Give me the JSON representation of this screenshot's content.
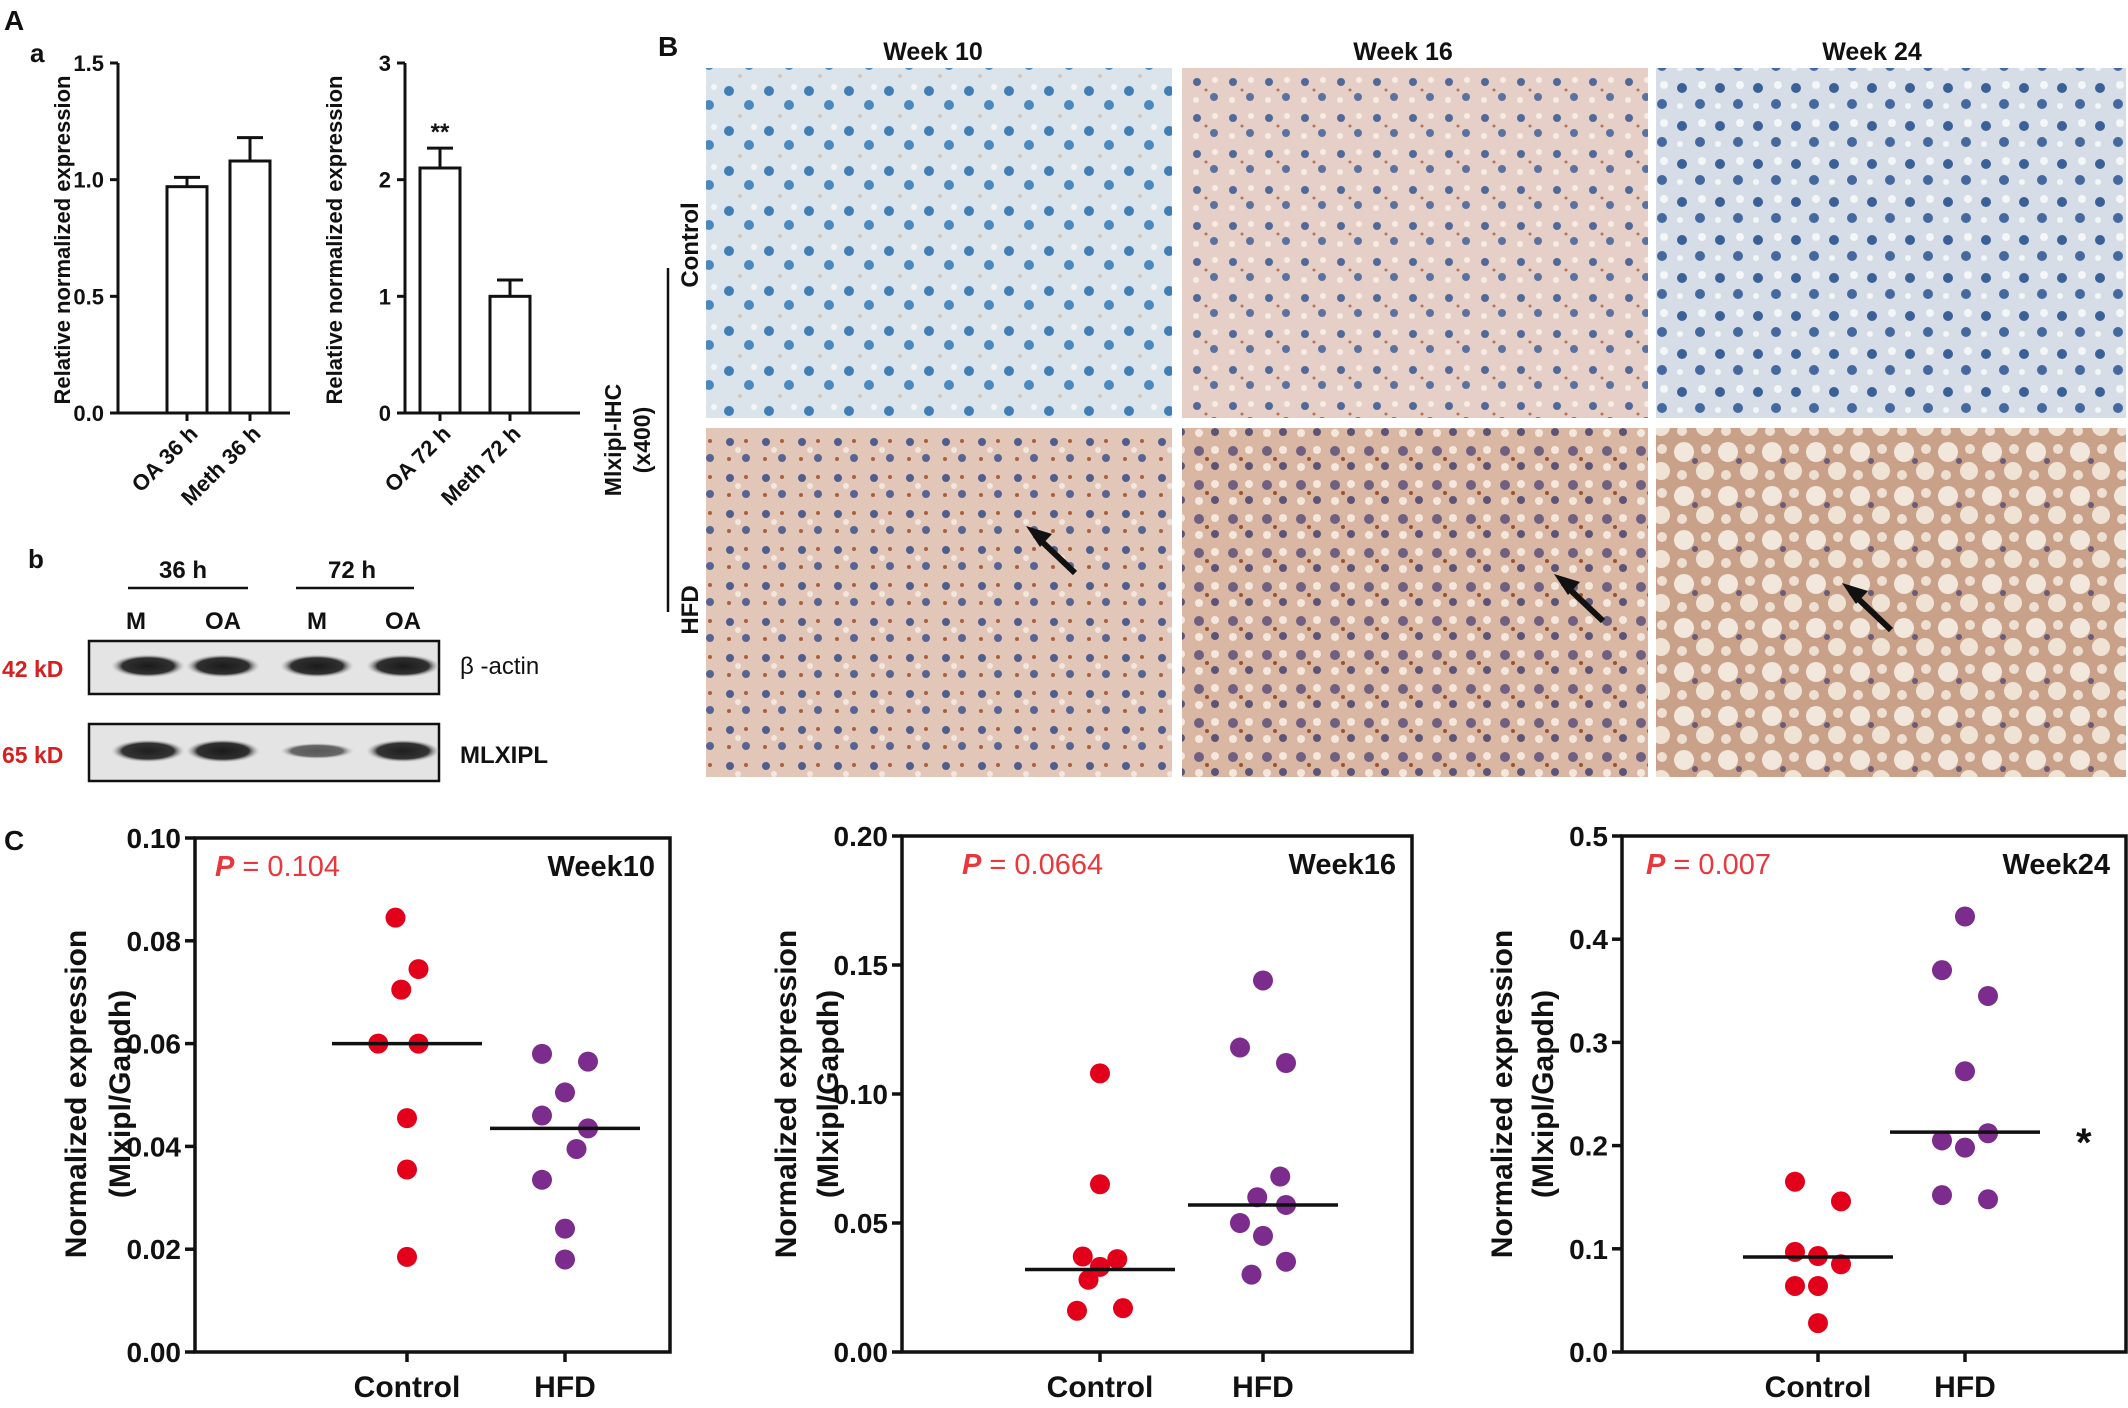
{
  "panels": {
    "A": "A",
    "a": "a",
    "b": "b",
    "B": "B",
    "C": "C"
  },
  "colors": {
    "control_dot": "#e3001b",
    "hfd_dot": "#7b2c8c",
    "p_value": "#e8383d",
    "kd_label": "#d42020"
  },
  "chart_data": [
    {
      "type": "bar",
      "panel": "A-a-left",
      "categories": [
        "OA 36 h",
        "Meth 36 h"
      ],
      "values": [
        0.97,
        1.08
      ],
      "errors": [
        0.04,
        0.1
      ],
      "ylabel": "Relative normalized expression",
      "ylim": [
        0,
        1.5
      ],
      "yticks": [
        "0.0",
        "0.5",
        "1.0",
        "1.5"
      ],
      "annotations": []
    },
    {
      "type": "bar",
      "panel": "A-a-right",
      "categories": [
        "OA 72 h",
        "Meth 72 h"
      ],
      "values": [
        2.1,
        1.0
      ],
      "errors": [
        0.17,
        0.14
      ],
      "ylabel": "Relative normalized expression",
      "ylim": [
        0,
        3
      ],
      "yticks": [
        "0",
        "1",
        "2",
        "3"
      ],
      "annotations": [
        "**",
        ""
      ]
    },
    {
      "type": "scatter",
      "panel": "C-week10",
      "label": "Week10",
      "p_text": "P",
      "p_value": "= 0.104",
      "categories": [
        "Control",
        "HFD"
      ],
      "ylabel": "Normalized expression",
      "ylabel2": "(Mlxipl/Gapdh)",
      "ylim": [
        0,
        0.1
      ],
      "yticks": [
        "0.00",
        "0.02",
        "0.04",
        "0.06",
        "0.08",
        "0.10"
      ],
      "series": [
        {
          "group": "Control",
          "median": 0.06,
          "points": [
            [
              -0.01,
              0.0845
            ],
            [
              0.01,
              0.0745
            ],
            [
              -0.005,
              0.0705
            ],
            [
              -0.025,
              0.06
            ],
            [
              0.01,
              0.06
            ],
            [
              0.0,
              0.0455
            ],
            [
              0.0,
              0.0355
            ],
            [
              0.0,
              0.0185
            ]
          ]
        },
        {
          "group": "HFD",
          "median": 0.0435,
          "points": [
            [
              -0.02,
              0.058
            ],
            [
              0.02,
              0.0565
            ],
            [
              0.0,
              0.0505
            ],
            [
              -0.02,
              0.046
            ],
            [
              0.02,
              0.0435
            ],
            [
              0.01,
              0.0395
            ],
            [
              -0.02,
              0.0335
            ],
            [
              0.0,
              0.024
            ],
            [
              0.0,
              0.018
            ]
          ]
        }
      ],
      "star": ""
    },
    {
      "type": "scatter",
      "panel": "C-week16",
      "label": "Week16",
      "p_text": "P",
      "p_value": "= 0.0664",
      "categories": [
        "Control",
        "HFD"
      ],
      "ylabel": "Normalized expression",
      "ylabel2": "(Mlxipl/Gapdh)",
      "ylim": [
        0,
        0.2
      ],
      "yticks": [
        "0.00",
        "0.05",
        "0.10",
        "0.15",
        "0.20"
      ],
      "series": [
        {
          "group": "Control",
          "median": 0.032,
          "points": [
            [
              0.0,
              0.108
            ],
            [
              0.0,
              0.065
            ],
            [
              -0.015,
              0.037
            ],
            [
              0.015,
              0.036
            ],
            [
              0.0,
              0.033
            ],
            [
              -0.01,
              0.028
            ],
            [
              0.02,
              0.017
            ],
            [
              -0.02,
              0.016
            ]
          ]
        },
        {
          "group": "HFD",
          "median": 0.057,
          "points": [
            [
              0.0,
              0.144
            ],
            [
              -0.02,
              0.118
            ],
            [
              0.02,
              0.112
            ],
            [
              0.015,
              0.068
            ],
            [
              -0.005,
              0.06
            ],
            [
              0.02,
              0.057
            ],
            [
              -0.02,
              0.05
            ],
            [
              0.0,
              0.045
            ],
            [
              0.02,
              0.035
            ],
            [
              -0.01,
              0.03
            ]
          ]
        }
      ],
      "star": ""
    },
    {
      "type": "scatter",
      "panel": "C-week24",
      "label": "Week24",
      "p_text": "P",
      "p_value": "= 0.007",
      "categories": [
        "Control",
        "HFD"
      ],
      "ylabel": "Normalized expression",
      "ylabel2": "(Mlxipl/Gapdh)",
      "ylim": [
        0,
        0.5
      ],
      "yticks": [
        "0.0",
        "0.1",
        "0.2",
        "0.3",
        "0.4",
        "0.5"
      ],
      "series": [
        {
          "group": "Control",
          "median": 0.092,
          "points": [
            [
              -0.02,
              0.165
            ],
            [
              0.02,
              0.146
            ],
            [
              -0.02,
              0.097
            ],
            [
              0.0,
              0.093
            ],
            [
              0.02,
              0.085
            ],
            [
              -0.02,
              0.064
            ],
            [
              0.0,
              0.064
            ],
            [
              0.0,
              0.028
            ]
          ]
        },
        {
          "group": "HFD",
          "median": 0.213,
          "points": [
            [
              0.0,
              0.422
            ],
            [
              -0.02,
              0.37
            ],
            [
              0.02,
              0.345
            ],
            [
              0.0,
              0.272
            ],
            [
              0.02,
              0.212
            ],
            [
              -0.02,
              0.205
            ],
            [
              0.0,
              0.198
            ],
            [
              -0.02,
              0.152
            ],
            [
              0.02,
              0.148
            ]
          ]
        }
      ],
      "star": "*"
    }
  ],
  "western_blot": {
    "time_labels": [
      "36 h",
      "72 h"
    ],
    "lane_labels": [
      "M",
      "OA",
      "M",
      "OA"
    ],
    "bands": [
      {
        "kd": "42 kD",
        "name": "β -actin",
        "intensities": [
          0.95,
          0.95,
          0.95,
          0.95
        ]
      },
      {
        "kd": "65 kD",
        "name": "MLXIPL",
        "intensities": [
          0.92,
          0.95,
          0.5,
          0.92
        ]
      }
    ]
  },
  "ihc": {
    "columns": [
      "Week 10",
      "Week 16",
      "Week 24"
    ],
    "rows": [
      "Control",
      "HFD"
    ],
    "side_label_1": "Mlxipl-IHC",
    "side_label_2": "(x400)"
  }
}
